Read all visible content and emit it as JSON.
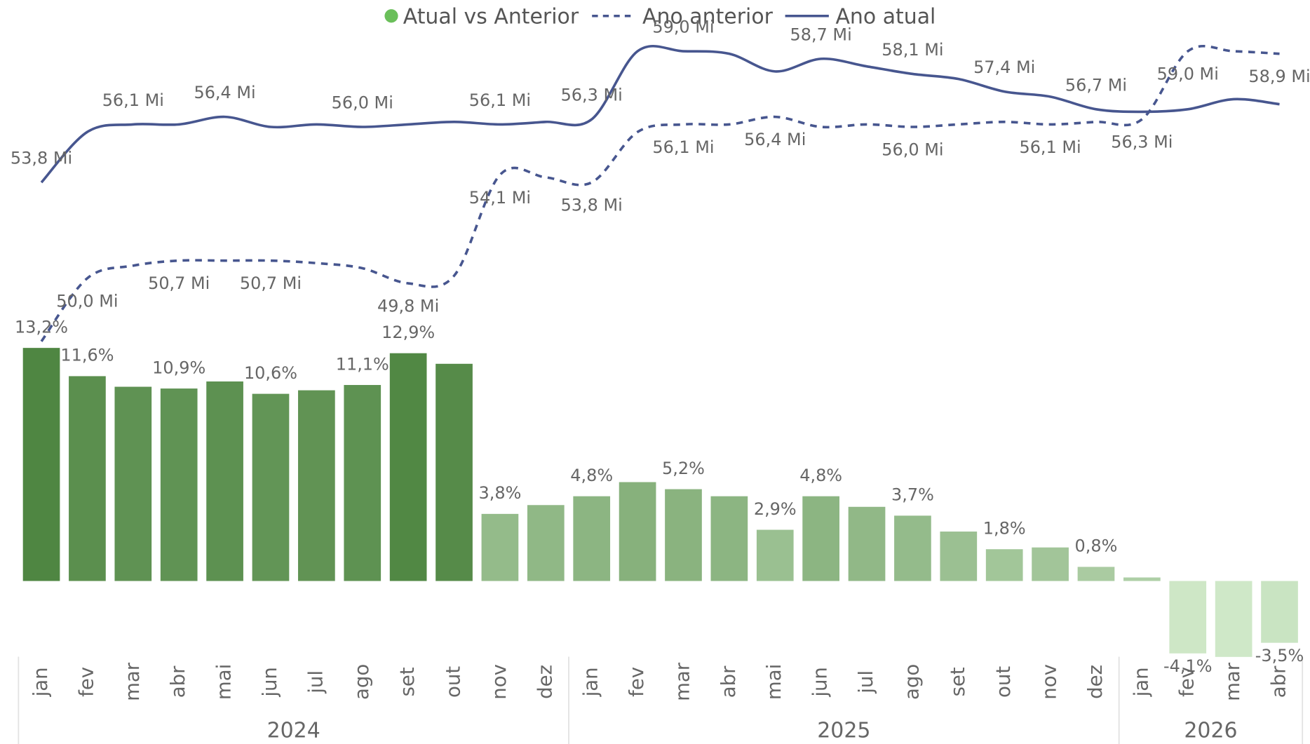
{
  "chart_data": {
    "type": "combo",
    "legend": "top",
    "category_groups": [
      {
        "label": "2024",
        "categories": [
          "jan",
          "fev",
          "mar",
          "abr",
          "mai",
          "jun",
          "jul",
          "ago",
          "set",
          "out",
          "nov",
          "dez"
        ]
      },
      {
        "label": "2025",
        "categories": [
          "jan",
          "fev",
          "mar",
          "abr",
          "mai",
          "jun",
          "jul",
          "ago",
          "set",
          "out",
          "nov",
          "dez"
        ]
      },
      {
        "label": "2026",
        "categories": [
          "jan",
          "fev",
          "mar",
          "abr"
        ]
      }
    ],
    "ylim": [
      -4,
      31
    ],
    "y2lim": [
      35.2,
      59.7
    ],
    "series": [
      {
        "name": "Atual vs Anterior",
        "type": "bar",
        "color": "#6abf5a",
        "color_high": "#4f8642",
        "color_low": "#cfe8c8",
        "values": [
          13.2,
          11.6,
          11.0,
          10.9,
          11.3,
          10.6,
          10.8,
          11.1,
          12.9,
          12.3,
          3.8,
          4.3,
          4.8,
          5.6,
          5.2,
          4.8,
          2.9,
          4.8,
          4.2,
          3.7,
          2.8,
          1.8,
          1.9,
          0.8,
          0.2,
          -4.1,
          -4.3,
          -3.5
        ],
        "value_labels": [
          "13,2%",
          "11,6%",
          null,
          "10,9%",
          null,
          "10,6%",
          null,
          "11,1%",
          "12,9%",
          null,
          "3,8%",
          null,
          "4,8%",
          null,
          "5,2%",
          null,
          "2,9%",
          "4,8%",
          null,
          "3,7%",
          null,
          "1,8%",
          null,
          "0,8%",
          null,
          "-4,1%",
          null,
          "-3,5%"
        ]
      },
      {
        "name": "Ano anterior",
        "type": "line",
        "axis": "y2",
        "dashed": true,
        "color": "#47568f",
        "label_side": "below",
        "values": [
          47.5,
          50.0,
          50.5,
          50.7,
          50.7,
          50.7,
          50.6,
          50.4,
          49.8,
          50.1,
          54.1,
          54.0,
          53.8,
          55.8,
          56.1,
          56.1,
          56.4,
          56.0,
          56.1,
          56.0,
          56.1,
          56.2,
          56.1,
          56.2,
          56.3,
          59.0,
          59.0,
          58.9
        ],
        "value_labels": [
          null,
          "50,0 Mi",
          null,
          "50,7 Mi",
          null,
          "50,7 Mi",
          null,
          null,
          "49,8 Mi",
          null,
          "54,1 Mi",
          null,
          "53,8 Mi",
          null,
          "56,1 Mi",
          null,
          "56,4 Mi",
          null,
          null,
          "56,0 Mi",
          null,
          null,
          "56,1 Mi",
          null,
          "56,3 Mi",
          "59,0 Mi",
          null,
          "58,9 Mi"
        ]
      },
      {
        "name": "Ano atual",
        "type": "line",
        "axis": "y2",
        "dashed": false,
        "color": "#47568f",
        "label_side": "above",
        "values": [
          53.8,
          55.8,
          56.1,
          56.1,
          56.4,
          56.0,
          56.1,
          56.0,
          56.1,
          56.2,
          56.1,
          56.2,
          56.3,
          59.0,
          59.0,
          58.9,
          58.2,
          58.7,
          58.4,
          58.1,
          57.9,
          57.4,
          57.2,
          56.7,
          56.6,
          56.7,
          57.1,
          56.9
        ],
        "value_labels": [
          "53,8 Mi",
          null,
          "56,1 Mi",
          null,
          "56,4 Mi",
          null,
          null,
          "56,0 Mi",
          null,
          null,
          "56,1 Mi",
          null,
          "56,3 Mi",
          null,
          "59,0 Mi",
          null,
          null,
          "58,7 Mi",
          null,
          "58,1 Mi",
          null,
          "57,4 Mi",
          null,
          "56,7 Mi",
          null,
          null,
          null,
          null
        ]
      }
    ]
  }
}
